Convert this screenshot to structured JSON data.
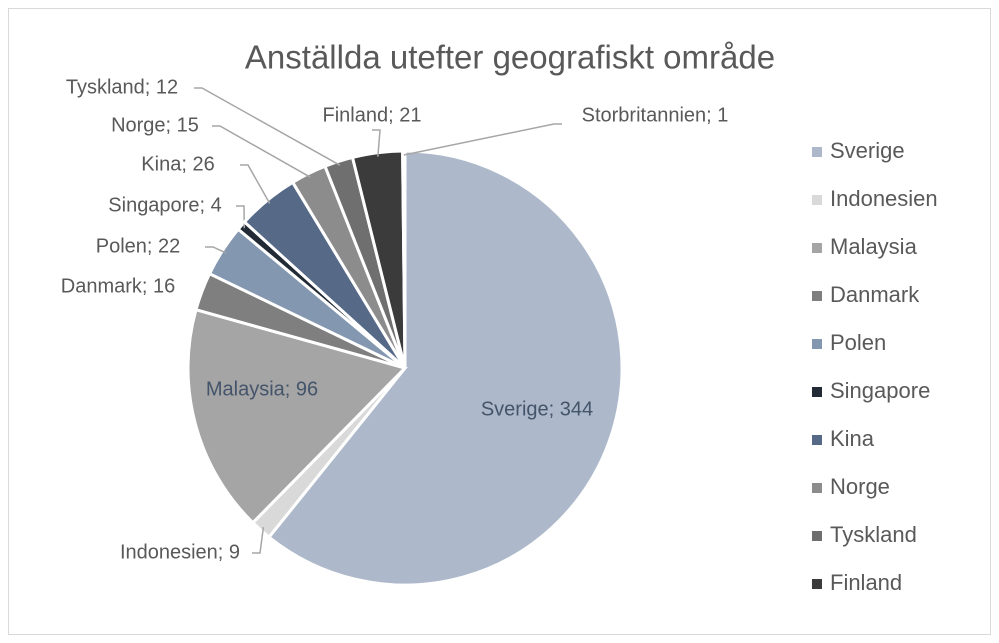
{
  "chart_data": {
    "type": "pie",
    "title": "Anställda utefter geografiskt område",
    "categories": [
      "Sverige",
      "Indonesien",
      "Malaysia",
      "Danmark",
      "Polen",
      "Singapore",
      "Kina",
      "Norge",
      "Tyskland",
      "Finland",
      "Storbritannien"
    ],
    "values": [
      344,
      9,
      96,
      16,
      22,
      4,
      26,
      15,
      12,
      21,
      1
    ],
    "value_labels": [
      "Sverige; 344",
      "Indonesien; 9",
      "Malaysia; 96",
      "Danmark; 16",
      "Polen; 22",
      "Singapore; 4",
      "Kina; 26",
      "Norge; 15",
      "Tyskland; 12",
      "Finland; 21",
      "Storbritannien; 1"
    ],
    "colors": [
      "#adb9ca",
      "#d9d9d9",
      "#a5a5a5",
      "#7f7f7f",
      "#8497b0",
      "#222a35",
      "#566a88",
      "#8c8c8c",
      "#6f6f6f",
      "#3b3b3b",
      "#adb9ca"
    ],
    "legend": "right"
  }
}
